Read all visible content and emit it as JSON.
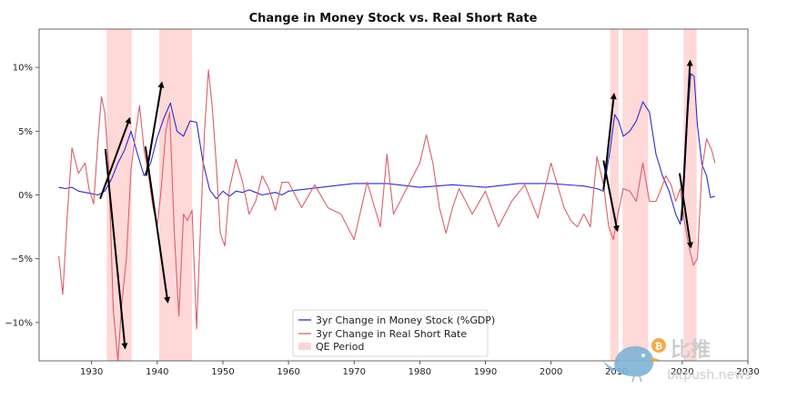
{
  "chart_data": {
    "type": "line",
    "title": "Change in Money Stock vs. Real Short Rate",
    "xlabel": "",
    "ylabel": "",
    "xlim": [
      1922,
      2030
    ],
    "ylim": [
      -13,
      13
    ],
    "x_ticks": [
      1930,
      1940,
      1950,
      1960,
      1970,
      1980,
      1990,
      2000,
      2010,
      2020,
      2030
    ],
    "x_tick_labels": [
      "1930",
      "1940",
      "1950",
      "1960",
      "1970",
      "1980",
      "1990",
      "2000",
      "2010",
      "2020",
      "2030"
    ],
    "y_ticks": [
      -10,
      -5,
      0,
      5,
      10
    ],
    "y_tick_labels": [
      "−10%",
      "−5%",
      "0%",
      "5%",
      "10%"
    ],
    "grid": false,
    "legend_position": "lower-center",
    "legend": [
      {
        "label": "3yr Change in Money Stock (%GDP)",
        "kind": "line",
        "color": "#2b2bd1"
      },
      {
        "label": "3yr Change in Real Short Rate",
        "kind": "line",
        "color": "#d9606a"
      },
      {
        "label": "QE Period",
        "kind": "patch",
        "color": "#ffd4d4"
      }
    ],
    "qe_periods": [
      [
        1932.3,
        1936.1
      ],
      [
        1940.3,
        1945.3
      ],
      [
        2009.0,
        2010.3
      ],
      [
        2010.9,
        2014.8
      ],
      [
        2020.2,
        2022.2
      ]
    ],
    "series": [
      {
        "name": "3yr Change in Money Stock (%GDP)",
        "color": "#2b2bd1",
        "x": [
          1925,
          1926,
          1927,
          1928,
          1929,
          1930,
          1931,
          1932,
          1933,
          1934,
          1935,
          1936,
          1937,
          1938,
          1939,
          1940,
          1941,
          1942,
          1943,
          1944,
          1945,
          1946,
          1947,
          1948,
          1949,
          1950,
          1951,
          1952,
          1953,
          1954,
          1955,
          1956,
          1957,
          1958,
          1959,
          1960,
          1965,
          1970,
          1975,
          1980,
          1985,
          1990,
          1995,
          2000,
          2005,
          2007,
          2008,
          2009,
          2009.7,
          2010.3,
          2011,
          2012,
          2013,
          2014,
          2015,
          2016,
          2017,
          2018,
          2019,
          2019.7,
          2020.3,
          2020.8,
          2021.3,
          2021.8,
          2022.3,
          2023,
          2023.7,
          2024.3,
          2025
        ],
        "values": [
          0.6,
          0.5,
          0.6,
          0.3,
          0.2,
          0.1,
          0.0,
          0.3,
          1.2,
          2.5,
          3.5,
          5.0,
          3.2,
          1.5,
          2.5,
          4.5,
          6.0,
          7.2,
          5.0,
          4.6,
          5.8,
          5.7,
          2.5,
          0.4,
          -0.3,
          0.3,
          -0.1,
          0.3,
          0.2,
          0.4,
          0.2,
          0.0,
          0.1,
          0.2,
          0.0,
          0.3,
          0.6,
          0.9,
          0.9,
          0.6,
          0.8,
          0.6,
          0.9,
          0.9,
          0.7,
          0.5,
          0.3,
          3.5,
          6.3,
          5.8,
          4.6,
          5.0,
          5.8,
          7.3,
          6.5,
          3.2,
          1.5,
          0.3,
          -1.5,
          -2.3,
          1.0,
          6.0,
          9.5,
          9.3,
          5.5,
          2.4,
          1.5,
          -0.2,
          -0.1
        ]
      },
      {
        "name": "3yr Change in Real Short Rate",
        "color": "#d9606a",
        "x": [
          1925,
          1925.6,
          1926.3,
          1927,
          1928,
          1929,
          1929.6,
          1930.3,
          1931,
          1931.5,
          1932,
          1932.6,
          1933.3,
          1934,
          1934.6,
          1935.3,
          1936,
          1936.6,
          1937.3,
          1938,
          1938.6,
          1939.3,
          1940,
          1940.6,
          1941.3,
          1941.9,
          1942.6,
          1943.3,
          1944,
          1944.6,
          1945.3,
          1946,
          1946.6,
          1947.2,
          1947.8,
          1948.4,
          1949,
          1949.6,
          1950.3,
          1951,
          1952,
          1953,
          1954,
          1955,
          1956,
          1957,
          1958,
          1959,
          1960,
          1962,
          1964,
          1966,
          1968,
          1970,
          1972,
          1974,
          1975,
          1976,
          1978,
          1980,
          1981,
          1982,
          1983,
          1984,
          1985,
          1986,
          1988,
          1990,
          1992,
          1994,
          1996,
          1998,
          2000,
          2002,
          2003,
          2004,
          2005,
          2006,
          2007,
          2008,
          2008.8,
          2009.5,
          2010.2,
          2011,
          2012,
          2013,
          2014,
          2015,
          2016,
          2016.8,
          2017.5,
          2018.3,
          2019,
          2019.7,
          2020.3,
          2021,
          2021.7,
          2022.3,
          2023,
          2023.7,
          2024.5,
          2025
        ],
        "values": [
          -4.8,
          -7.8,
          -1.5,
          3.7,
          1.7,
          2.5,
          0.5,
          -0.7,
          4.5,
          7.7,
          6.5,
          2.2,
          -9.0,
          -13.0,
          -8.5,
          -5.0,
          2.0,
          4.5,
          7.0,
          3.5,
          1.8,
          -0.8,
          -2.5,
          0.5,
          5.0,
          6.5,
          -3.0,
          -9.5,
          -1.5,
          -2.0,
          -1.2,
          -10.5,
          -2.5,
          5.0,
          9.8,
          6.8,
          2.3,
          -3.0,
          -4.0,
          0.5,
          2.8,
          1.0,
          -1.5,
          -0.5,
          1.5,
          0.5,
          -1.2,
          1.0,
          1.0,
          -1.0,
          0.8,
          -1.0,
          -1.5,
          -3.5,
          1.0,
          -2.5,
          3.2,
          -1.5,
          0.5,
          2.5,
          4.7,
          2.5,
          -1.0,
          -3.0,
          -1.0,
          0.5,
          -1.5,
          0.3,
          -2.5,
          -0.5,
          0.8,
          -1.8,
          2.5,
          -1.0,
          -2.0,
          -2.5,
          -1.5,
          -2.5,
          3.0,
          0.8,
          -2.5,
          -3.5,
          -1.5,
          0.5,
          0.3,
          -0.5,
          2.5,
          -0.5,
          -0.5,
          0.5,
          1.5,
          0.8,
          -0.5,
          0.5,
          -2.0,
          -4.0,
          -5.5,
          -5.0,
          2.0,
          4.4,
          3.5,
          2.5
        ]
      }
    ],
    "annotations": [
      {
        "type": "arrow",
        "from": [
          1931.3,
          -0.3
        ],
        "to": [
          1935.8,
          6.0
        ]
      },
      {
        "type": "arrow",
        "from": [
          1932.1,
          3.6
        ],
        "to": [
          1935.1,
          -12.0
        ]
      },
      {
        "type": "arrow",
        "from": [
          1938.3,
          1.5
        ],
        "to": [
          1940.7,
          8.8
        ]
      },
      {
        "type": "arrow",
        "from": [
          1938.2,
          3.8
        ],
        "to": [
          1941.6,
          -8.4
        ]
      },
      {
        "type": "arrow",
        "from": [
          2008.0,
          0.4
        ],
        "to": [
          2009.6,
          7.9
        ]
      },
      {
        "type": "arrow",
        "from": [
          2008.0,
          2.7
        ],
        "to": [
          2010.1,
          -2.8
        ]
      },
      {
        "type": "arrow",
        "from": [
          2019.9,
          -2.0
        ],
        "to": [
          2021.2,
          10.5
        ]
      },
      {
        "type": "arrow",
        "from": [
          2019.6,
          1.7
        ],
        "to": [
          2021.3,
          -4.1
        ]
      }
    ]
  },
  "watermark": {
    "text_cn": "比推",
    "text_en": "bitpush.news",
    "logo": "bird-logo-with-bitcoin-coin"
  }
}
